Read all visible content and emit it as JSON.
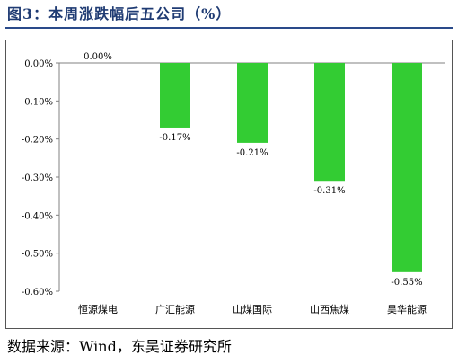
{
  "figure": {
    "title": "图3：本周涨跌幅后五公司（%）",
    "source": "数据来源：Wind，东吴证券研究所"
  },
  "chart_data": {
    "type": "bar",
    "categories": [
      "恒源煤电",
      "广汇能源",
      "山煤国际",
      "山西焦煤",
      "昊华能源"
    ],
    "values": [
      0.0,
      -0.17,
      -0.21,
      -0.31,
      -0.55
    ],
    "data_labels": [
      "0.00%",
      "-0.17%",
      "-0.21%",
      "-0.31%",
      "-0.55%"
    ],
    "ylim": [
      -0.6,
      0.0
    ],
    "yticks": [
      0.0,
      -0.1,
      -0.2,
      -0.3,
      -0.4,
      -0.5,
      -0.6
    ],
    "ytick_labels": [
      "0.00%",
      "-0.10%",
      "-0.20%",
      "-0.30%",
      "-0.40%",
      "-0.50%",
      "-0.60%"
    ],
    "bar_color": "#33cc33",
    "grid": false,
    "legend": "none",
    "title": "",
    "xlabel": "",
    "ylabel": ""
  }
}
